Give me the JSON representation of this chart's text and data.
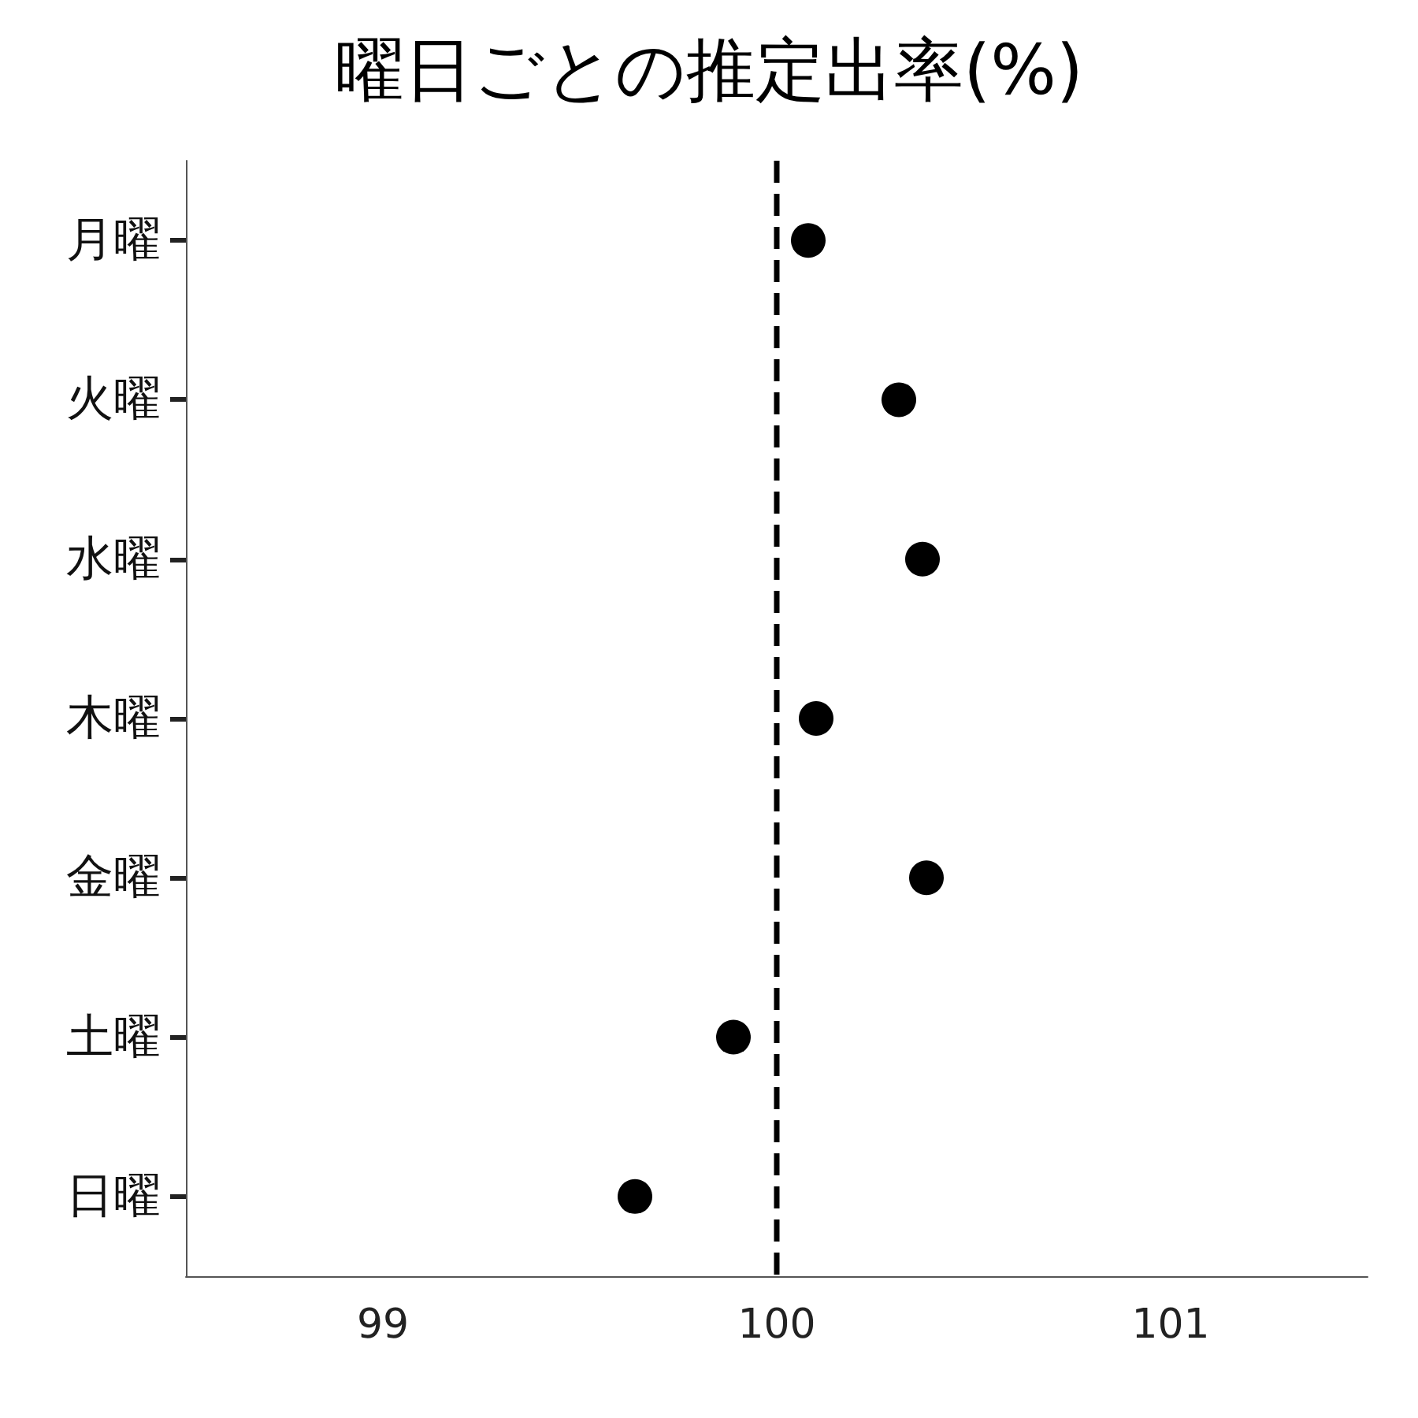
{
  "chart_data": {
    "type": "scatter",
    "title": "曜日ごとの推定出率(%)",
    "orientation": "horizontal",
    "categories": [
      "月曜",
      "火曜",
      "水曜",
      "木曜",
      "金曜",
      "土曜",
      "日曜"
    ],
    "values": [
      100.08,
      100.31,
      100.37,
      100.1,
      100.38,
      99.89,
      99.64
    ],
    "color": "#000000",
    "marker": "circle",
    "grid": false,
    "xlim": [
      98.5,
      101.5
    ],
    "xticks": [
      99,
      100,
      101
    ],
    "ref_lines": [
      {
        "axis": "x",
        "value": 100,
        "color": "#000000",
        "line_style": "dashed"
      }
    ]
  }
}
